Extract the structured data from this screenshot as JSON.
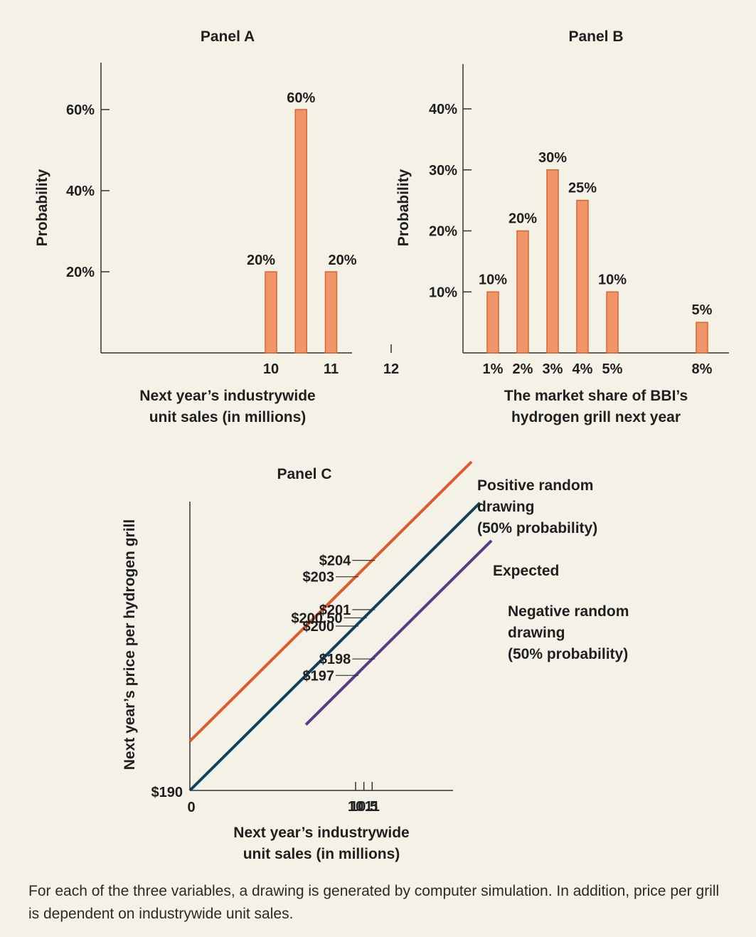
{
  "chart_data": [
    {
      "type": "bar",
      "title": "Panel A",
      "xlabel_lines": [
        "Next year’s industrywide",
        "unit sales (in millions)"
      ],
      "ylabel": "Probability",
      "x": [
        10,
        10.5,
        11
      ],
      "values": [
        20,
        60,
        20
      ],
      "data_labels": [
        "20%",
        "60%",
        "20%"
      ],
      "x_ticks": [
        "10",
        "11",
        "12"
      ],
      "y_ticks": [
        "20%",
        "40%",
        "60%"
      ],
      "ylim": [
        0,
        60
      ],
      "color": "#f0956a"
    },
    {
      "type": "bar",
      "title": "Panel B",
      "xlabel_lines": [
        "The market share of BBI’s",
        "hydrogen grill next year"
      ],
      "ylabel": "Probability",
      "x": [
        1,
        2,
        3,
        4,
        5,
        8
      ],
      "categories": [
        "1%",
        "2%",
        "3%",
        "4%",
        "5%",
        "8%"
      ],
      "values": [
        10,
        20,
        30,
        25,
        10,
        5
      ],
      "data_labels": [
        "10%",
        "20%",
        "30%",
        "25%",
        "10%",
        "5%"
      ],
      "y_ticks": [
        "10%",
        "20%",
        "30%",
        "40%"
      ],
      "ylim": [
        0,
        40
      ],
      "color": "#f0956a"
    },
    {
      "type": "line",
      "title": "Panel C",
      "xlabel_lines": [
        "Next year’s industrywide",
        "unit sales (in millions)"
      ],
      "ylabel": "Next year’s price per hydrogen grill",
      "origin_x_label": "0",
      "origin_y_label": "$190",
      "x_ticks": [
        "10",
        "10.5",
        "11"
      ],
      "series": [
        {
          "name_lines": [
            "Positive random",
            "drawing",
            "(50% probability)"
          ],
          "color": "#e05a2b",
          "points": [
            [
              0,
              193
            ],
            [
              10,
              203
            ],
            [
              11,
              204
            ]
          ],
          "labels": [
            "$203",
            "$204"
          ]
        },
        {
          "name_lines": [
            "Expected"
          ],
          "color": "#0d4360",
          "points": [
            [
              0,
              190
            ],
            [
              10,
              200
            ],
            [
              10.5,
              200.5
            ],
            [
              11,
              201
            ]
          ],
          "labels": [
            "$200",
            "$200.50",
            "$201"
          ]
        },
        {
          "name_lines": [
            "Negative random",
            "drawing",
            "(50% probability)"
          ],
          "color": "#5b3a86",
          "points": [
            [
              7,
              194
            ],
            [
              10,
              197
            ],
            [
              11,
              198
            ]
          ],
          "labels": [
            "$197",
            "$198"
          ]
        }
      ]
    }
  ],
  "caption": "For each of the three variables, a drawing is generated by computer simulation. In addition, price per grill is dependent on industrywide unit sales."
}
